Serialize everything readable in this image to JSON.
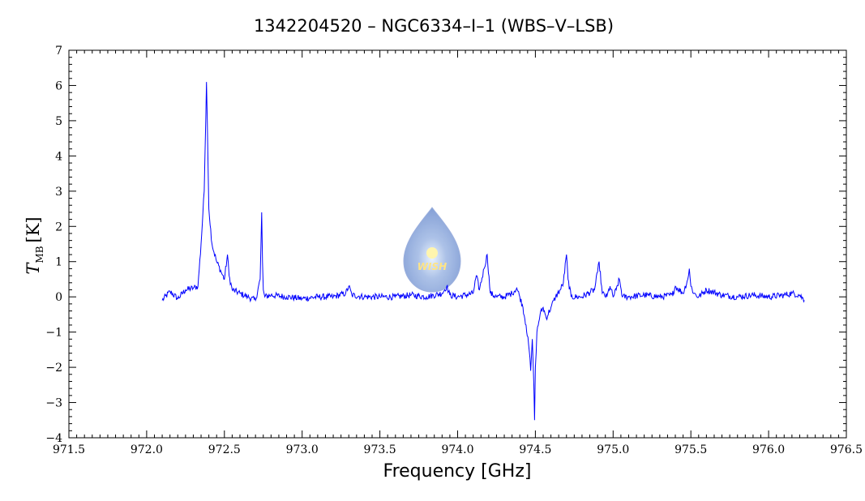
{
  "chart_data": {
    "type": "line",
    "title": "1342204520 – NGC6334–I–1 (WBS–V–LSB)",
    "xlabel": "Frequency [GHz]",
    "ylabel": {
      "symbol": "T",
      "subscript": "MB",
      "unit": "[K]"
    },
    "xlim": [
      971.5,
      976.5
    ],
    "ylim": [
      -4,
      7
    ],
    "x_ticks": [
      971.5,
      972.0,
      972.5,
      973.0,
      973.5,
      974.0,
      974.5,
      975.0,
      975.5,
      976.0,
      976.5
    ],
    "x_tick_labels": [
      "971.5",
      "972.0",
      "972.5",
      "973.0",
      "973.5",
      "974.0",
      "974.5",
      "975.0",
      "975.5",
      "976.0",
      "976.5"
    ],
    "y_ticks": [
      -4,
      -3,
      -2,
      -1,
      0,
      1,
      2,
      3,
      4,
      5,
      6,
      7
    ],
    "y_tick_labels": [
      "−4",
      "−3",
      "−2",
      "−1",
      "0",
      "1",
      "2",
      "3",
      "4",
      "5",
      "6",
      "7"
    ],
    "grid": false,
    "series": [
      {
        "color": "#0000ff",
        "x": [
          972.1,
          972.15,
          972.2,
          972.25,
          972.3,
          972.33,
          972.35,
          972.37,
          972.38,
          972.385,
          972.39,
          972.4,
          972.42,
          972.45,
          972.48,
          972.5,
          972.52,
          972.53,
          972.55,
          972.6,
          972.65,
          972.7,
          972.73,
          972.74,
          972.745,
          972.75,
          972.76,
          972.8,
          972.9,
          973.0,
          973.1,
          973.2,
          973.28,
          973.3,
          973.32,
          973.4,
          973.5,
          973.6,
          973.7,
          973.8,
          973.9,
          973.93,
          973.95,
          974.0,
          974.1,
          974.12,
          974.14,
          974.17,
          974.19,
          974.21,
          974.25,
          974.3,
          974.35,
          974.38,
          974.4,
          974.42,
          974.44,
          974.46,
          974.47,
          974.48,
          974.49,
          974.495,
          974.5,
          974.51,
          974.53,
          974.55,
          974.57,
          974.6,
          974.63,
          974.66,
          974.68,
          974.7,
          974.71,
          974.73,
          974.8,
          974.88,
          974.9,
          974.91,
          974.93,
          974.96,
          974.98,
          975.0,
          975.02,
          975.04,
          975.06,
          975.1,
          975.2,
          975.3,
          975.38,
          975.4,
          975.45,
          975.48,
          975.49,
          975.5,
          975.52,
          975.55,
          975.6,
          975.7,
          975.8,
          975.9,
          976.0,
          976.1,
          976.15,
          976.2,
          976.23
        ],
        "y": [
          -0.1,
          0.15,
          -0.05,
          0.2,
          0.25,
          0.3,
          1.5,
          3.0,
          5.0,
          6.1,
          5.0,
          2.5,
          1.5,
          1.0,
          0.7,
          0.5,
          1.2,
          0.6,
          0.2,
          0.1,
          0.0,
          -0.1,
          0.5,
          2.4,
          1.0,
          0.2,
          0.0,
          0.05,
          0.0,
          -0.05,
          0.0,
          0.0,
          0.1,
          0.3,
          0.05,
          0.0,
          0.0,
          0.0,
          0.05,
          0.0,
          0.1,
          0.3,
          0.05,
          0.0,
          0.1,
          0.6,
          0.2,
          0.8,
          1.2,
          0.1,
          0.0,
          0.0,
          0.1,
          0.25,
          0.0,
          -0.3,
          -0.8,
          -1.5,
          -2.1,
          -1.2,
          -2.5,
          -3.5,
          -2.0,
          -1.0,
          -0.5,
          -0.3,
          -0.6,
          -0.3,
          0.0,
          0.2,
          0.4,
          1.2,
          0.5,
          0.0,
          0.0,
          0.2,
          0.7,
          1.0,
          0.1,
          0.0,
          0.3,
          0.0,
          0.2,
          0.5,
          0.0,
          0.0,
          0.05,
          0.0,
          0.05,
          0.3,
          0.1,
          0.5,
          0.8,
          0.3,
          0.1,
          0.0,
          0.2,
          0.05,
          0.0,
          0.05,
          0.0,
          0.05,
          0.1,
          0.05,
          -0.1
        ]
      }
    ]
  },
  "watermark": {
    "text": "WISH"
  }
}
